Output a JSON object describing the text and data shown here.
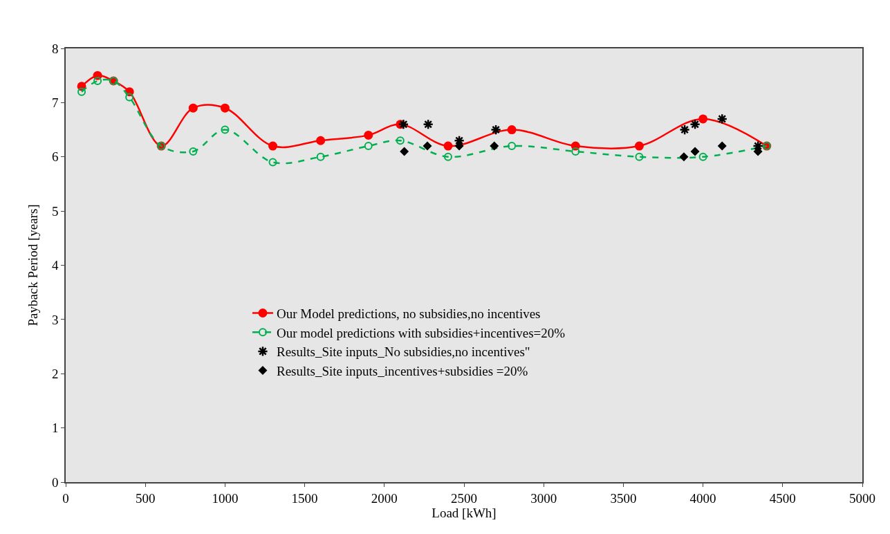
{
  "chart_data": {
    "type": "line",
    "xlabel": "Load [kWh]",
    "ylabel": "Payback Period [years]",
    "xlim": [
      0,
      5000
    ],
    "xticks": [
      0,
      500,
      1000,
      1500,
      2000,
      2500,
      3000,
      3500,
      4000,
      4500,
      5000
    ],
    "ylim": [
      0,
      8
    ],
    "yticks": [
      0,
      1,
      2,
      3,
      4,
      5,
      6,
      7,
      8
    ],
    "grid": false,
    "legend": "bottom left",
    "series": [
      {
        "name": "Our Model predictions, no subsidies,no incentives",
        "color": "#ff0000",
        "marker": "circle",
        "line_style": "solid",
        "x": [
          100,
          200,
          300,
          400,
          600,
          800,
          1000,
          1300,
          1600,
          1900,
          2100,
          2400,
          2800,
          3200,
          3600,
          4000,
          4400
        ],
        "values": [
          7.3,
          7.5,
          7.4,
          7.2,
          6.2,
          6.9,
          6.9,
          6.2,
          6.3,
          6.4,
          6.6,
          6.2,
          6.5,
          6.2,
          6.2,
          6.7,
          6.2
        ]
      },
      {
        "name": "Our model predictions with subsidies+incentives=20%",
        "color": "#00b050",
        "marker": "circle-open",
        "line_style": "dashed",
        "x": [
          100,
          200,
          300,
          400,
          600,
          800,
          1000,
          1300,
          1600,
          1900,
          2100,
          2400,
          2800,
          3200,
          3600,
          4000,
          4400
        ],
        "values": [
          7.2,
          7.4,
          7.4,
          7.1,
          6.2,
          6.1,
          6.5,
          5.9,
          6.0,
          6.2,
          6.3,
          6.0,
          6.2,
          6.1,
          6.0,
          6.0,
          6.2
        ]
      },
      {
        "name": "Results_Site inputs_No subsidies,no incentives\"",
        "type": "scatter",
        "color": "#000000",
        "marker": "cross",
        "x": [
          2120,
          2275,
          2470,
          2700,
          3885,
          3950,
          4120,
          4345
        ],
        "values": [
          6.6,
          6.6,
          6.3,
          6.5,
          6.5,
          6.6,
          6.7,
          6.2
        ]
      },
      {
        "name": "Results_Site inputs_incentives+subsidies =20%",
        "type": "scatter",
        "color": "#000000",
        "marker": "diamond",
        "x": [
          2125,
          2270,
          2470,
          2690,
          3880,
          3950,
          4120,
          4345
        ],
        "values": [
          6.1,
          6.2,
          6.2,
          6.2,
          6.0,
          6.1,
          6.2,
          6.1
        ]
      }
    ]
  }
}
